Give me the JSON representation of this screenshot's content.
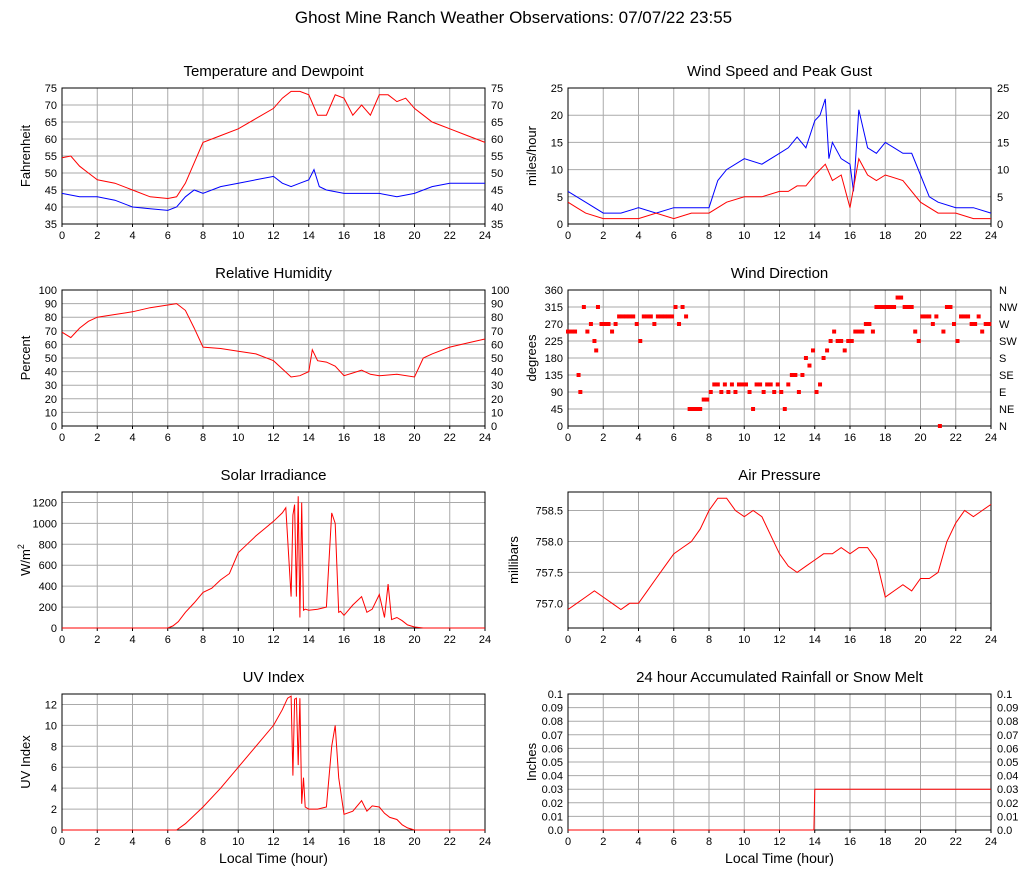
{
  "page": {
    "title": "Ghost Mine Ranch Weather Observations: 07/07/22 23:55"
  },
  "colors": {
    "red": "#ff0000",
    "blue": "#0000ff",
    "grid": "#aaaaaa",
    "frame": "#000000"
  },
  "chart_data": [
    {
      "id": "temp",
      "type": "line",
      "title": "Temperature and Dewpoint",
      "ylabel": "Fahrenheit",
      "xlim": [
        0,
        24
      ],
      "ylim": [
        35,
        75
      ],
      "yticks": [
        35,
        40,
        45,
        50,
        55,
        60,
        65,
        70,
        75
      ],
      "right_axis": true,
      "series": [
        {
          "color": "#ff0000",
          "x": [
            0,
            0.5,
            1,
            1.5,
            2,
            3,
            4,
            5,
            6,
            6.5,
            7,
            7.5,
            8,
            9,
            10,
            11,
            12,
            12.5,
            13,
            13.5,
            14,
            14.5,
            15,
            15.5,
            16,
            16.5,
            17,
            17.5,
            18,
            18.5,
            19,
            19.5,
            20,
            20.5,
            21,
            22,
            23,
            24
          ],
          "y": [
            54.5,
            55,
            52,
            50,
            48,
            47,
            45,
            43,
            42.5,
            43,
            47,
            53,
            59,
            61,
            63,
            66,
            69,
            72,
            74,
            74,
            73,
            67,
            67,
            73,
            72,
            67,
            70,
            67,
            73,
            73,
            71,
            72,
            69,
            67,
            65,
            63,
            61,
            59
          ]
        },
        {
          "color": "#0000ff",
          "x": [
            0,
            1,
            2,
            3,
            4,
            5,
            6,
            6.5,
            7,
            7.5,
            8,
            9,
            10,
            11,
            12,
            12.5,
            13,
            13.5,
            14,
            14.3,
            14.6,
            15,
            16,
            17,
            18,
            19,
            20,
            20.5,
            21,
            22,
            23,
            24
          ],
          "y": [
            44,
            43,
            43,
            42,
            40,
            39.5,
            39,
            40,
            43,
            45,
            44,
            46,
            47,
            48,
            49,
            47,
            46,
            47,
            48,
            51,
            46,
            45,
            44,
            44,
            44,
            43,
            44,
            45,
            46,
            47,
            47,
            47
          ]
        }
      ]
    },
    {
      "id": "wind",
      "type": "line",
      "title": "Wind Speed and Peak Gust",
      "ylabel": "miles/hour",
      "xlim": [
        0,
        24
      ],
      "ylim": [
        0,
        25
      ],
      "yticks": [
        0,
        5,
        10,
        15,
        20,
        25
      ],
      "right_axis": true,
      "series": [
        {
          "color": "#0000ff",
          "x": [
            0,
            0.5,
            1,
            2,
            3,
            4,
            5,
            6,
            7,
            8,
            8.5,
            9,
            10,
            11,
            12,
            12.5,
            13,
            13.5,
            14,
            14.3,
            14.6,
            14.8,
            15,
            15.5,
            16,
            16.2,
            16.5,
            17,
            17.5,
            18,
            18.5,
            19,
            19.5,
            20,
            20.5,
            21,
            22,
            23,
            24
          ],
          "y": [
            6,
            5,
            4,
            2,
            2,
            3,
            2,
            3,
            3,
            3,
            8,
            10,
            12,
            11,
            13,
            14,
            16,
            14,
            19,
            20,
            23,
            12,
            15,
            12,
            11,
            6,
            21,
            14,
            13,
            15,
            14,
            13,
            13,
            9,
            5,
            4,
            3,
            3,
            2
          ]
        },
        {
          "color": "#ff0000",
          "x": [
            0,
            0.5,
            1,
            2,
            3,
            4,
            5,
            6,
            7,
            8,
            9,
            10,
            11,
            12,
            12.5,
            13,
            13.5,
            14,
            14.3,
            14.6,
            15,
            15.5,
            16,
            16.5,
            17,
            17.5,
            18,
            19,
            20,
            21,
            22,
            23,
            24
          ],
          "y": [
            4,
            3,
            2,
            1,
            1,
            1,
            2,
            1,
            2,
            2,
            4,
            5,
            5,
            6,
            6,
            7,
            7,
            9,
            10,
            11,
            8,
            9,
            3,
            12,
            9,
            8,
            9,
            8,
            4,
            2,
            2,
            1,
            1
          ]
        }
      ]
    },
    {
      "id": "rh",
      "type": "line",
      "title": "Relative Humidity",
      "ylabel": "Percent",
      "xlim": [
        0,
        24
      ],
      "ylim": [
        0,
        100
      ],
      "yticks": [
        0,
        10,
        20,
        30,
        40,
        50,
        60,
        70,
        80,
        90,
        100
      ],
      "right_axis": true,
      "series": [
        {
          "color": "#ff0000",
          "x": [
            0,
            0.5,
            1,
            1.5,
            2,
            3,
            4,
            5,
            6,
            6.5,
            7,
            7.5,
            8,
            9,
            10,
            11,
            12,
            12.5,
            13,
            13.5,
            14,
            14.2,
            14.5,
            15,
            15.5,
            16,
            16.5,
            17,
            17.5,
            18,
            19,
            20,
            20.5,
            21,
            22,
            23,
            24
          ],
          "y": [
            69,
            65,
            72,
            77,
            80,
            82,
            84,
            87,
            89,
            90,
            85,
            72,
            58,
            57,
            55,
            53,
            48,
            42,
            36,
            37,
            40,
            56,
            48,
            47,
            44,
            37,
            39,
            41,
            38,
            37,
            38,
            36,
            50,
            53,
            58,
            61,
            64
          ]
        }
      ]
    },
    {
      "id": "wdir",
      "type": "scatter",
      "title": "Wind Direction",
      "ylabel": "degrees",
      "xlim": [
        0,
        24
      ],
      "ylim": [
        0,
        360
      ],
      "yticks": [
        0,
        45,
        90,
        135,
        180,
        225,
        270,
        315,
        360
      ],
      "right_labels": [
        "N",
        "NE",
        "E",
        "SE",
        "S",
        "SW",
        "W",
        "NW",
        "N"
      ],
      "series": [
        {
          "color": "#ff0000",
          "x": [
            0,
            0.2,
            0.4,
            0.6,
            0.7,
            0.9,
            1.1,
            1.3,
            1.5,
            1.6,
            1.7,
            1.9,
            2.1,
            2.3,
            2.5,
            2.7,
            2.9,
            3.1,
            3.3,
            3.5,
            3.7,
            3.9,
            4.1,
            4.3,
            4.5,
            4.7,
            4.9,
            5.1,
            5.3,
            5.5,
            5.7,
            5.9,
            6.1,
            6.3,
            6.5,
            6.7,
            6.9,
            7.1,
            7.3,
            7.5,
            7.7,
            7.9,
            8.1,
            8.3,
            8.5,
            8.7,
            8.9,
            9.1,
            9.3,
            9.5,
            9.7,
            9.9,
            10.1,
            10.3,
            10.5,
            10.7,
            10.9,
            11.1,
            11.3,
            11.5,
            11.7,
            11.9,
            12.1,
            12.3,
            12.5,
            12.7,
            12.9,
            13.1,
            13.3,
            13.5,
            13.7,
            13.9,
            14.1,
            14.3,
            14.5,
            14.7,
            14.9,
            15.1,
            15.3,
            15.5,
            15.7,
            15.9,
            16.1,
            16.3,
            16.5,
            16.7,
            16.9,
            17.1,
            17.3,
            17.5,
            17.7,
            17.9,
            18.1,
            18.3,
            18.5,
            18.7,
            18.9,
            19.1,
            19.3,
            19.5,
            19.7,
            19.9,
            20.1,
            20.3,
            20.5,
            20.7,
            20.9,
            21.1,
            21.3,
            21.5,
            21.7,
            21.9,
            22.1,
            22.3,
            22.5,
            22.7,
            22.9,
            23.1,
            23.3,
            23.5,
            23.7,
            23.9
          ],
          "y": [
            250,
            250,
            250,
            135,
            90,
            315,
            250,
            270,
            225,
            200,
            315,
            270,
            270,
            270,
            250,
            270,
            290,
            290,
            290,
            290,
            290,
            270,
            225,
            290,
            290,
            290,
            270,
            290,
            290,
            290,
            290,
            290,
            315,
            270,
            315,
            290,
            45,
            45,
            45,
            45,
            70,
            70,
            90,
            110,
            110,
            90,
            110,
            90,
            110,
            90,
            110,
            110,
            110,
            90,
            45,
            110,
            110,
            90,
            110,
            110,
            90,
            110,
            90,
            45,
            110,
            135,
            135,
            90,
            135,
            180,
            160,
            200,
            90,
            110,
            180,
            200,
            225,
            250,
            225,
            225,
            200,
            225,
            225,
            250,
            250,
            250,
            270,
            270,
            250,
            315,
            315,
            315,
            315,
            315,
            315,
            340,
            340,
            315,
            315,
            315,
            250,
            225,
            290,
            290,
            290,
            270,
            290,
            0,
            250,
            315,
            315,
            270,
            225,
            290,
            290,
            290,
            270,
            270,
            290,
            250,
            270,
            270
          ]
        }
      ]
    },
    {
      "id": "solar",
      "type": "line",
      "title": "Solar Irradiance",
      "ylabel": "W/m",
      "ylabel_sup": "2",
      "xlim": [
        0,
        24
      ],
      "ylim": [
        0,
        1300
      ],
      "yticks": [
        0,
        200,
        400,
        600,
        800,
        1000,
        1200
      ],
      "right_axis": false,
      "series": [
        {
          "color": "#ff0000",
          "x": [
            0,
            6,
            6.3,
            6.6,
            7,
            7.5,
            8,
            8.5,
            9,
            9.5,
            10,
            10.5,
            11,
            11.5,
            12,
            12.5,
            12.7,
            13,
            13.1,
            13.2,
            13.3,
            13.4,
            13.5,
            13.6,
            13.7,
            13.8,
            14,
            14.5,
            15,
            15.3,
            15.5,
            15.7,
            15.8,
            16,
            16.5,
            17,
            17.3,
            17.6,
            18,
            18.3,
            18.5,
            18.7,
            19,
            19.3,
            19.6,
            20,
            20.5,
            24
          ],
          "y": [
            0,
            0,
            20,
            60,
            150,
            240,
            340,
            380,
            460,
            520,
            720,
            800,
            880,
            950,
            1020,
            1100,
            1150,
            300,
            1080,
            1180,
            300,
            1260,
            100,
            1200,
            170,
            180,
            170,
            180,
            200,
            1100,
            1000,
            150,
            160,
            120,
            220,
            300,
            150,
            180,
            320,
            100,
            420,
            80,
            100,
            70,
            30,
            10,
            0,
            0
          ]
        }
      ]
    },
    {
      "id": "pressure",
      "type": "line",
      "title": "Air Pressure",
      "ylabel": "millibars",
      "xlim": [
        0,
        24
      ],
      "ylim": [
        756.6,
        758.8
      ],
      "yticks": [
        757.0,
        757.5,
        758.0,
        758.5
      ],
      "ytick_labels": [
        "757.0",
        "757.5",
        "758.0",
        "758.5"
      ],
      "right_axis": false,
      "series": [
        {
          "color": "#ff0000",
          "x": [
            0,
            0.5,
            1,
            1.5,
            2,
            2.5,
            3,
            3.5,
            4,
            4.5,
            5,
            5.5,
            6,
            6.5,
            7,
            7.5,
            8,
            8.5,
            9,
            9.5,
            10,
            10.5,
            11,
            11.5,
            12,
            12.5,
            13,
            13.5,
            14,
            14.5,
            15,
            15.5,
            16,
            16.5,
            17,
            17.5,
            18,
            18.5,
            19,
            19.5,
            20,
            20.5,
            21,
            21.5,
            22,
            22.5,
            23,
            23.5,
            24
          ],
          "y": [
            756.9,
            757.0,
            757.1,
            757.2,
            757.1,
            757.0,
            756.9,
            757.0,
            757.0,
            757.2,
            757.4,
            757.6,
            757.8,
            757.9,
            758.0,
            758.2,
            758.5,
            758.7,
            758.7,
            758.5,
            758.4,
            758.5,
            758.4,
            758.1,
            757.8,
            757.6,
            757.5,
            757.6,
            757.7,
            757.8,
            757.8,
            757.9,
            757.8,
            757.9,
            757.9,
            757.7,
            757.1,
            757.2,
            757.3,
            757.2,
            757.4,
            757.4,
            757.5,
            758.0,
            758.3,
            758.5,
            758.4,
            758.5,
            758.6
          ]
        }
      ]
    },
    {
      "id": "uv",
      "type": "line",
      "title": "UV Index",
      "ylabel": "UV Index",
      "xlabel": "Local Time (hour)",
      "xlim": [
        0,
        24
      ],
      "ylim": [
        0,
        13
      ],
      "yticks": [
        0,
        2,
        4,
        6,
        8,
        10,
        12
      ],
      "right_axis": false,
      "series": [
        {
          "color": "#ff0000",
          "x": [
            0,
            6.5,
            7,
            8,
            9,
            10,
            11,
            12,
            12.5,
            12.8,
            13,
            13.1,
            13.2,
            13.3,
            13.4,
            13.5,
            13.6,
            13.7,
            13.8,
            14,
            14.5,
            15,
            15.3,
            15.5,
            15.7,
            16,
            16.5,
            17,
            17.3,
            17.6,
            18,
            18.3,
            18.6,
            19,
            19.3,
            19.6,
            20,
            24
          ],
          "y": [
            0,
            0,
            0.6,
            2.2,
            4,
            6,
            8,
            10,
            11.5,
            12.6,
            12.8,
            5.2,
            12.5,
            12.6,
            6.2,
            12.6,
            2.5,
            5,
            2.2,
            2,
            2,
            2.2,
            8,
            10,
            5,
            1.5,
            1.8,
            2.8,
            1.8,
            2.3,
            2.2,
            1.6,
            1.2,
            1,
            0.5,
            0.2,
            0,
            0
          ]
        }
      ]
    },
    {
      "id": "rain",
      "type": "line",
      "title": "24 hour Accumulated Rainfall or Snow Melt",
      "ylabel": "Inches",
      "xlabel": "Local Time (hour)",
      "xlim": [
        0,
        24
      ],
      "ylim": [
        0,
        0.1
      ],
      "yticks": [
        0,
        0.01,
        0.02,
        0.03,
        0.04,
        0.05,
        0.06,
        0.07,
        0.08,
        0.09,
        0.1
      ],
      "ytick_labels": [
        "0.0",
        "0.01",
        "0.02",
        "0.03",
        "0.04",
        "0.05",
        "0.06",
        "0.07",
        "0.08",
        "0.09",
        "0.1"
      ],
      "right_axis": true,
      "series": [
        {
          "color": "#ff0000",
          "x": [
            0,
            13.95,
            14,
            24
          ],
          "y": [
            0,
            0,
            0.03,
            0.03
          ]
        }
      ]
    }
  ],
  "xticks": [
    0,
    2,
    4,
    6,
    8,
    10,
    12,
    14,
    16,
    18,
    20,
    22,
    24
  ]
}
